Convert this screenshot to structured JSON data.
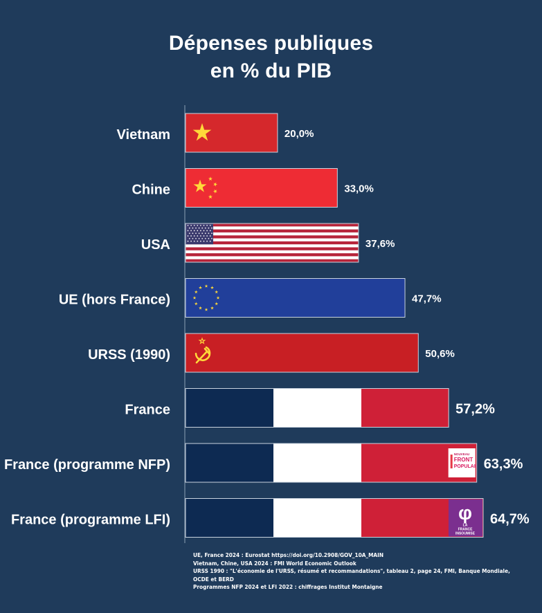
{
  "chart_data": {
    "type": "bar",
    "orientation": "horizontal",
    "title": "Dépenses publiques en % du PIB",
    "title_lines": [
      "Dépenses publiques",
      "en % du PIB"
    ],
    "categories": [
      "Vietnam",
      "Chine",
      "USA",
      "UE (hors France)",
      "URSS (1990)",
      "France",
      "France (programme NFP)",
      "France (programme LFI)"
    ],
    "values": [
      20.0,
      33.0,
      37.6,
      47.7,
      50.6,
      57.2,
      63.3,
      64.7
    ],
    "value_labels": [
      "20,0%",
      "33,0%",
      "37,6%",
      "47,7%",
      "50,6%",
      "57,2%",
      "63,3%",
      "64,7%"
    ],
    "unit": "%",
    "xlim": [
      0,
      64.7
    ],
    "bar_styles": [
      "flag-vietnam",
      "flag-china",
      "flag-usa",
      "flag-eu",
      "flag-ussr",
      "flag-france",
      "flag-france-nfp",
      "flag-france-lfi"
    ],
    "badges": {
      "nfp": {
        "top": "NOUVEAU",
        "line1": "FRONT",
        "line2": "POPULAIRE"
      },
      "lfi": {
        "symbol": "φ",
        "line1": "LA",
        "line2": "FRANCE",
        "line3": "INSOUMISE"
      }
    },
    "grid": false,
    "legend": "none"
  },
  "sources": [
    "UE, France 2024 : Eurostat https://doi.org/10.2908/GOV_10A_MAIN",
    "Vietnam, Chine, USA 2024 : FMI World Economic Outlook",
    "URSS 1990 : \"L'économie de l'URSS, résumé et recommandations\", tableau 2, page 24, FMI, Banque Mondiale,",
    "OCDE et BERD",
    "Programmes NFP 2024 et LFI 2022 : chiffrages Institut Montaigne"
  ],
  "colors": {
    "background": "#1f3b5b",
    "text": "#ffffff",
    "vietnam_red": "#d5282c",
    "china_red": "#ee2c34",
    "usa_red": "#b7243a",
    "usa_blue": "#3c3b6e",
    "eu_blue": "#213f9a",
    "ussr_red": "#c81f24",
    "star_yellow": "#ffd93a",
    "france_blue": "#0d2a52",
    "france_white": "#ffffff",
    "france_red": "#cf2037",
    "lfi_purple": "#7b2f8f"
  }
}
